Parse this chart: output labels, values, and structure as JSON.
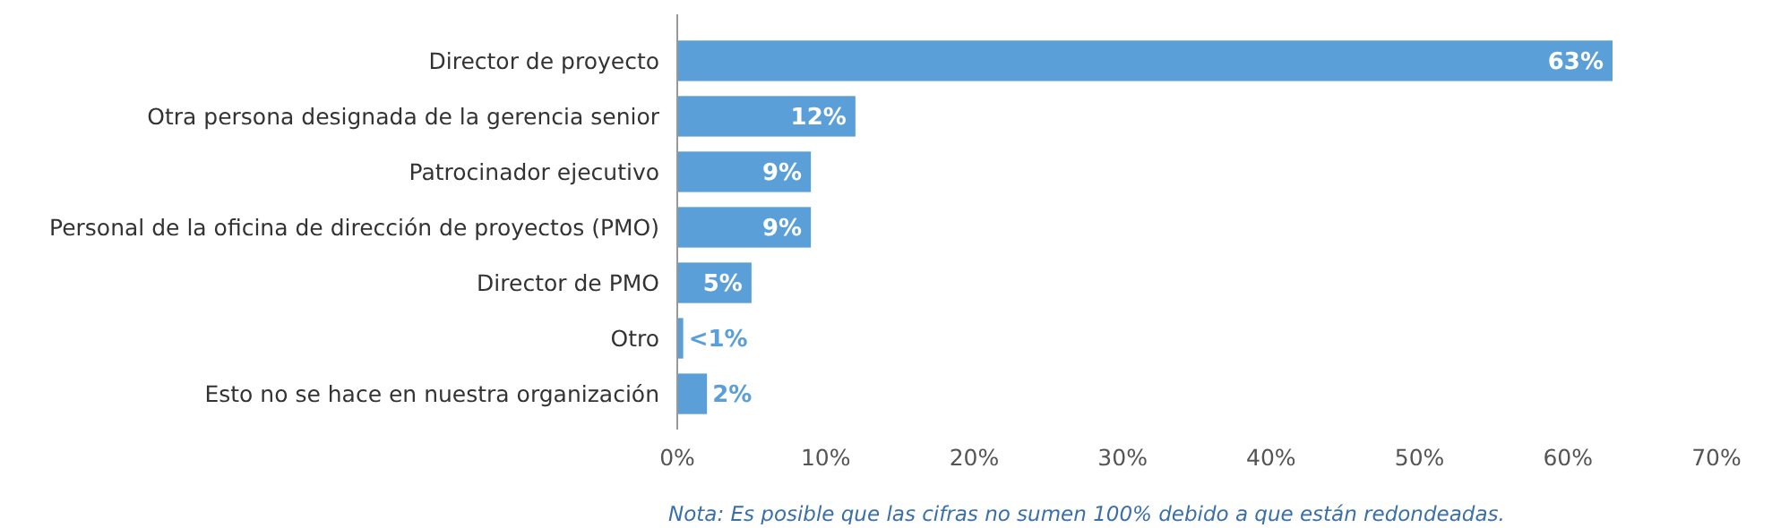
{
  "chart_data": {
    "type": "bar",
    "orientation": "horizontal",
    "categories": [
      "Director de proyecto",
      "Otra persona designada de la gerencia senior",
      "Patrocinador ejecutivo",
      "Personal de la oficina de dirección de proyectos (PMO)",
      "Director de PMO",
      "Otro",
      "Esto no se hace en nuestra organización"
    ],
    "values": [
      63,
      12,
      9,
      9,
      5,
      0.4,
      2
    ],
    "value_labels": [
      "63%",
      "12%",
      "9%",
      "9%",
      "5%",
      "<1%",
      "2%"
    ],
    "color": "#5b9fd9",
    "xlim": [
      0,
      70
    ],
    "xticks": [
      {
        "value": 0,
        "label": "0%"
      },
      {
        "value": 10,
        "label": "10%"
      },
      {
        "value": 20,
        "label": "20%"
      },
      {
        "value": 30,
        "label": "30%"
      },
      {
        "value": 40,
        "label": "40%"
      },
      {
        "value": 50,
        "label": "50%"
      },
      {
        "value": 60,
        "label": "60%"
      },
      {
        "value": 70,
        "label": "70%"
      }
    ],
    "annotations": [
      "Nota: Es posible que las cifras no sumen 100% debido a que están redondeadas."
    ],
    "grid": false
  }
}
